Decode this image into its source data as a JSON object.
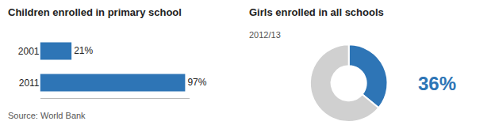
{
  "chart_data": [
    {
      "type": "bar",
      "orientation": "horizontal",
      "title": "Children enrolled in primary school",
      "categories": [
        "2001",
        "2011"
      ],
      "values": [
        21,
        97
      ],
      "value_labels": [
        "21%",
        "97%"
      ],
      "data_labels": true,
      "color": "#2e75b6",
      "xlim": [
        0,
        100
      ],
      "tick_labels": "y",
      "grid": false,
      "annotations": [
        "Source: World Bank"
      ]
    },
    {
      "type": "pie",
      "title": "Girls enrolled in all schools",
      "subtitle": "2012/13",
      "values": [
        36,
        64
      ],
      "colors": [
        "#2e75b6",
        "#d0d0d0"
      ],
      "value_labels": [
        "36%",
        null
      ],
      "data_labels": true
    }
  ]
}
